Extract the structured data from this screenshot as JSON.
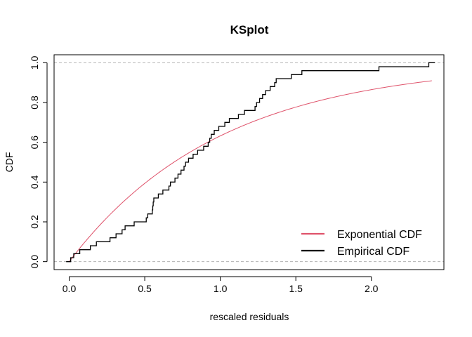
{
  "chart_data": {
    "type": "line",
    "title": "KSplot",
    "xlabel": "rescaled residuals",
    "ylabel": "CDF",
    "xlim": [
      -0.1,
      2.48
    ],
    "ylim": [
      -0.04,
      1.04
    ],
    "x_ticks": [
      "0.0",
      "0.5",
      "1.0",
      "1.5",
      "2.0"
    ],
    "y_ticks": [
      "0.0",
      "0.2",
      "0.4",
      "0.6",
      "0.8",
      "1.0"
    ],
    "reference_lines": [
      0,
      1
    ],
    "legend_position": "bottom-right",
    "series": [
      {
        "name": "Exponential CDF",
        "kind": "curve",
        "color": "#DF536B",
        "formula": "1 - exp(-x)",
        "x_range": [
          0.0,
          2.4
        ]
      },
      {
        "name": "Empirical CDF",
        "kind": "step",
        "color": "#000000",
        "x": [
          -0.02,
          0.01,
          0.03,
          0.07,
          0.14,
          0.18,
          0.27,
          0.31,
          0.35,
          0.37,
          0.43,
          0.51,
          0.52,
          0.55,
          0.553,
          0.556,
          0.56,
          0.59,
          0.62,
          0.66,
          0.67,
          0.7,
          0.72,
          0.74,
          0.76,
          0.77,
          0.79,
          0.82,
          0.85,
          0.89,
          0.92,
          0.93,
          0.94,
          0.96,
          0.99,
          1.03,
          1.06,
          1.12,
          1.16,
          1.23,
          1.24,
          1.26,
          1.28,
          1.3,
          1.33,
          1.36,
          1.37,
          1.38,
          1.47,
          1.54,
          1.56,
          2.05,
          2.38,
          2.42
        ],
        "y": [
          0.0,
          0.02,
          0.04,
          0.06,
          0.08,
          0.1,
          0.12,
          0.14,
          0.16,
          0.18,
          0.2,
          0.22,
          0.24,
          0.26,
          0.28,
          0.3,
          0.32,
          0.34,
          0.36,
          0.38,
          0.4,
          0.42,
          0.44,
          0.46,
          0.48,
          0.5,
          0.52,
          0.54,
          0.56,
          0.58,
          0.6,
          0.62,
          0.64,
          0.66,
          0.68,
          0.7,
          0.72,
          0.74,
          0.76,
          0.78,
          0.8,
          0.82,
          0.84,
          0.86,
          0.88,
          0.9,
          0.92,
          0.92,
          0.94,
          0.96,
          0.96,
          0.98,
          1.0,
          1.0
        ]
      }
    ]
  }
}
